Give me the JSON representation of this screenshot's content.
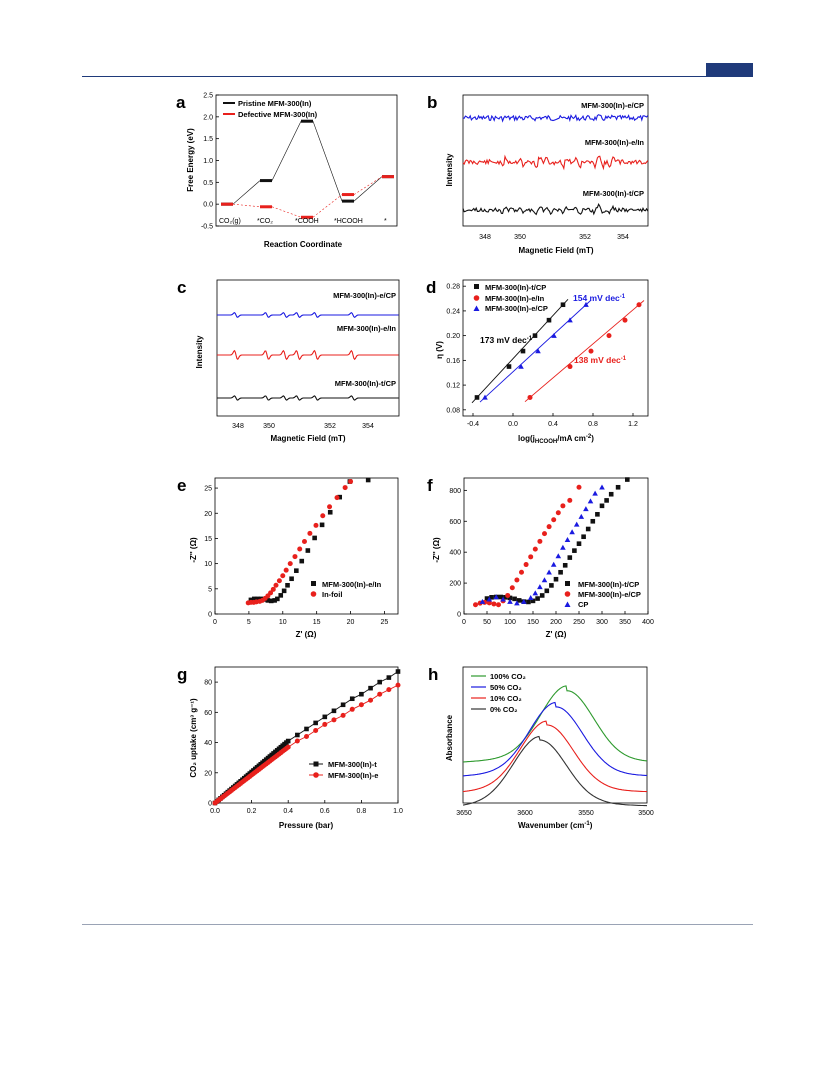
{
  "colors": {
    "black": "#111111",
    "red": "#e8201c",
    "blue": "#1a1ae0",
    "green": "#2e9a2e",
    "header": "#1f3a7a"
  },
  "panels": {
    "a": {
      "label": "a",
      "ylabel": "Free Energy (eV)",
      "xlabel": "Reaction Coordinate",
      "yticks": [
        "2.5",
        "2.0",
        "1.5",
        "1.0",
        "0.5",
        "0.0",
        "-0.5"
      ],
      "states": [
        "CO₂(g)",
        "*CO₂",
        "*COOH",
        "*HCOOH",
        "*"
      ],
      "legend": [
        "Pristine MFM-300(In)",
        "Defective MFM-300(In)"
      ]
    },
    "b": {
      "label": "b",
      "ylabel": "Intensity",
      "xlabel": "Magnetic Field (mT)",
      "xticks": [
        "348",
        "350",
        "352",
        "354"
      ],
      "traces": [
        "MFM-300(In)-e/CP",
        "MFM-300(In)-e/In",
        "MFM-300(In)-t/CP"
      ]
    },
    "c": {
      "label": "c",
      "ylabel": "Intensity",
      "xlabel": "Magnetic Field (mT)",
      "xticks": [
        "348",
        "350",
        "352",
        "354"
      ],
      "traces": [
        "MFM-300(In)-e/CP",
        "MFM-300(In)-e/In",
        "MFM-300(In)-t/CP"
      ]
    },
    "d": {
      "label": "d",
      "ylabel": "η (V)",
      "xlabel": "log(j",
      "xlabel_sub": "HCOOH",
      "xlabel_tail": "/mA cm",
      "yticks": [
        "0.28",
        "0.24",
        "0.20",
        "0.16",
        "0.12",
        "0.08"
      ],
      "xticks": [
        "-0.4",
        "0.0",
        "0.4",
        "0.8",
        "1.2"
      ],
      "legend": [
        "MFM-300(In)-t/CP",
        "MFM-300(In)-e/In",
        "MFM-300(In)-e/CP"
      ],
      "annotations": [
        "173 mV dec",
        "154 mV dec",
        "138 mV dec"
      ]
    },
    "e": {
      "label": "e",
      "ylabel": "-Z'' (Ω)",
      "xlabel": "Z' (Ω)",
      "yticks": [
        "25",
        "20",
        "15",
        "10",
        "5",
        "0"
      ],
      "xticks": [
        "0",
        "5",
        "10",
        "15",
        "20",
        "25"
      ],
      "legend": [
        "MFM-300(In)-e/In",
        "In-foil"
      ]
    },
    "f": {
      "label": "f",
      "ylabel": "-Z'' (Ω)",
      "xlabel": "Z' (Ω)",
      "yticks": [
        "800",
        "600",
        "400",
        "200",
        "0"
      ],
      "xticks": [
        "0",
        "50",
        "100",
        "150",
        "200",
        "250",
        "300",
        "350",
        "400"
      ],
      "legend": [
        "MFM-300(In)-t/CP",
        "MFM-300(In)-e/CP",
        "CP"
      ]
    },
    "g": {
      "label": "g",
      "ylabel": "CO₂ uptake (cm³ g⁻¹)",
      "xlabel": "Pressure (bar)",
      "yticks": [
        "80",
        "60",
        "40",
        "20",
        "0"
      ],
      "xticks": [
        "0.0",
        "0.2",
        "0.4",
        "0.6",
        "0.8",
        "1.0"
      ],
      "legend": [
        "MFM-300(In)-t",
        "MFM-300(In)-e"
      ]
    },
    "h": {
      "label": "h",
      "ylabel": "Absorbance",
      "xlabel": "Wavenumber (cm",
      "xticks": [
        "3650",
        "3600",
        "3550",
        "3500"
      ],
      "legend": [
        "100% CO₂",
        "50% CO₂",
        "10% CO₂",
        "0% CO₂"
      ]
    }
  },
  "chart_data": [
    {
      "type": "line",
      "panel": "a",
      "categories": [
        "CO₂(g)",
        "*CO₂",
        "*COOH",
        "*HCOOH",
        "*"
      ],
      "ylim": [
        -0.5,
        2.5
      ],
      "series": [
        {
          "name": "Pristine MFM-300(In)",
          "values": [
            0.0,
            0.54,
            1.9,
            0.07,
            0.63
          ]
        },
        {
          "name": "Defective MFM-300(In)",
          "values": [
            0.0,
            -0.06,
            -0.3,
            0.22,
            0.63
          ]
        }
      ]
    },
    {
      "type": "scatter",
      "panel": "d",
      "xlim": [
        -0.5,
        1.35
      ],
      "ylim": [
        0.07,
        0.29
      ],
      "series": [
        {
          "name": "MFM-300(In)-t/CP",
          "x": [
            -0.36,
            -0.04,
            0.1,
            0.22,
            0.36,
            0.5
          ],
          "y": [
            0.1,
            0.15,
            0.175,
            0.2,
            0.225,
            0.25
          ]
        },
        {
          "name": "MFM-300(In)-e/In",
          "x": [
            0.17,
            0.57,
            0.78,
            0.96,
            1.12,
            1.26
          ],
          "y": [
            0.1,
            0.15,
            0.175,
            0.2,
            0.225,
            0.25
          ]
        },
        {
          "name": "MFM-300(In)-e/CP",
          "x": [
            -0.28,
            0.08,
            0.25,
            0.41,
            0.57,
            0.73
          ],
          "y": [
            0.1,
            0.15,
            0.175,
            0.2,
            0.225,
            0.25
          ]
        }
      ]
    },
    {
      "type": "scatter",
      "panel": "e",
      "xlim": [
        0,
        27
      ],
      "ylim": [
        0,
        27
      ],
      "series": [
        {
          "name": "MFM-300(In)-e/In",
          "x": [
            5.3,
            5.8,
            6.3,
            6.8,
            7.3,
            7.8,
            8.3,
            8.8,
            9.2,
            9.7,
            10.2,
            10.7,
            11.3,
            12.0,
            12.8,
            13.7,
            14.7,
            15.8,
            17.0,
            18.4,
            19.9,
            22.6
          ],
          "y": [
            2.8,
            3.0,
            3.0,
            3.0,
            2.9,
            2.7,
            2.6,
            2.7,
            3.0,
            3.7,
            4.6,
            5.7,
            7.0,
            8.6,
            10.5,
            12.6,
            15.1,
            17.7,
            20.2,
            23.2,
            26.3,
            26.6
          ]
        },
        {
          "name": "In-foil",
          "x": [
            4.9,
            5.3,
            5.7,
            6.1,
            6.6,
            7.0,
            7.4,
            7.8,
            8.2,
            8.6,
            9.0,
            9.5,
            10.0,
            10.5,
            11.1,
            11.8,
            12.5,
            13.2,
            14.0,
            14.9,
            15.9,
            16.9,
            18.0,
            19.2,
            20.0
          ],
          "y": [
            2.2,
            2.3,
            2.3,
            2.4,
            2.5,
            2.7,
            3.1,
            3.6,
            4.2,
            4.9,
            5.7,
            6.6,
            7.6,
            8.7,
            10.0,
            11.4,
            12.9,
            14.4,
            16.0,
            17.6,
            19.5,
            21.3,
            23.1,
            25.1,
            26.3
          ]
        }
      ]
    },
    {
      "type": "scatter",
      "panel": "f",
      "xlim": [
        0,
        400
      ],
      "ylim": [
        0,
        880
      ],
      "series": [
        {
          "name": "MFM-300(In)-t/CP",
          "x": [
            50,
            60,
            70,
            80,
            90,
            100,
            110,
            120,
            130,
            140,
            150,
            160,
            170,
            180,
            190,
            200,
            210,
            220,
            230,
            240,
            250,
            260,
            270,
            280,
            290,
            300,
            310,
            320,
            335,
            355
          ],
          "y": [
            100,
            108,
            110,
            110,
            108,
            104,
            98,
            88,
            80,
            78,
            85,
            100,
            120,
            150,
            185,
            225,
            270,
            315,
            365,
            410,
            455,
            500,
            550,
            600,
            645,
            700,
            735,
            775,
            820,
            870
          ]
        },
        {
          "name": "MFM-300(In)-e/CP",
          "x": [
            25,
            35,
            45,
            55,
            65,
            75,
            85,
            95,
            105,
            115,
            125,
            135,
            145,
            155,
            165,
            175,
            185,
            195,
            205,
            215,
            230,
            250
          ],
          "y": [
            60,
            70,
            75,
            72,
            65,
            60,
            85,
            120,
            170,
            220,
            270,
            320,
            370,
            420,
            470,
            520,
            565,
            610,
            655,
            700,
            735,
            820
          ]
        },
        {
          "name": "CP",
          "x": [
            40,
            55,
            70,
            85,
            100,
            115,
            130,
            145,
            155,
            165,
            175,
            185,
            195,
            205,
            215,
            225,
            235,
            245,
            255,
            265,
            275,
            285,
            300
          ],
          "y": [
            80,
            95,
            110,
            95,
            80,
            70,
            80,
            105,
            135,
            175,
            220,
            270,
            320,
            375,
            430,
            480,
            530,
            580,
            630,
            680,
            730,
            780,
            820
          ]
        }
      ]
    },
    {
      "type": "scatter",
      "panel": "g",
      "xlim": [
        0,
        1.0
      ],
      "ylim": [
        0,
        90
      ],
      "series": [
        {
          "name": "MFM-300(In)-t",
          "x": [
            0.0,
            0.1,
            0.2,
            0.3,
            0.4,
            0.45,
            0.5,
            0.55,
            0.6,
            0.65,
            0.7,
            0.75,
            0.8,
            0.85,
            0.9,
            0.95,
            1.0
          ],
          "y": [
            0,
            11,
            22,
            32,
            41,
            45,
            49,
            53,
            57,
            61,
            65,
            69,
            72,
            76,
            80,
            83,
            87
          ]
        },
        {
          "name": "MFM-300(In)-e",
          "x": [
            0.0,
            0.1,
            0.2,
            0.3,
            0.4,
            0.45,
            0.5,
            0.55,
            0.6,
            0.65,
            0.7,
            0.75,
            0.8,
            0.85,
            0.9,
            0.95,
            1.0
          ],
          "y": [
            0,
            10,
            20,
            29,
            37,
            41,
            44,
            48,
            52,
            55,
            58,
            62,
            65,
            68,
            72,
            75,
            78
          ]
        }
      ]
    }
  ]
}
